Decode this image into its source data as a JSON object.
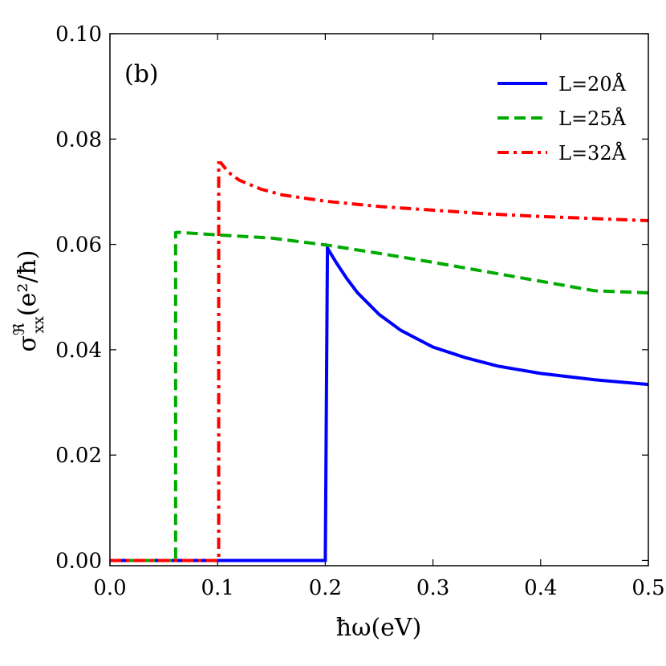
{
  "chart_data": {
    "type": "line",
    "panel_label": "(b)",
    "xlabel": "ħω(eV)",
    "ylabel": "σ",
    "ylabel_sup": "ℜ",
    "ylabel_sub": "xx",
    "ylabel_rest": "(e²/ħ)",
    "xlim": [
      0.0,
      0.5
    ],
    "ylim": [
      -0.001,
      0.1
    ],
    "xticks": [
      0.0,
      0.1,
      0.2,
      0.3,
      0.4,
      0.5
    ],
    "xtick_labels": [
      "0.0",
      "0.1",
      "0.2",
      "0.3",
      "0.4",
      "0.5"
    ],
    "yticks": [
      0.0,
      0.02,
      0.04,
      0.06,
      0.08,
      0.1
    ],
    "ytick_labels": [
      "0.00",
      "0.02",
      "0.04",
      "0.06",
      "0.08",
      "0.10"
    ],
    "legend_position": "top-right",
    "series": [
      {
        "name": "L=20Å",
        "color": "#0000ff",
        "style": "solid",
        "x": [
          0.0,
          0.2,
          0.2,
          0.202,
          0.21,
          0.22,
          0.23,
          0.25,
          0.27,
          0.3,
          0.33,
          0.36,
          0.4,
          0.45,
          0.5
        ],
        "y": [
          0.0,
          0.0,
          0.0,
          0.0593,
          0.0566,
          0.0535,
          0.0508,
          0.0467,
          0.0437,
          0.0405,
          0.0385,
          0.0369,
          0.0355,
          0.0343,
          0.0334
        ]
      },
      {
        "name": "L=25Å",
        "color": "#00aa00",
        "style": "dashed",
        "x": [
          0.0,
          0.061,
          0.061,
          0.063,
          0.1,
          0.15,
          0.2,
          0.25,
          0.3,
          0.35,
          0.4,
          0.45,
          0.5
        ],
        "y": [
          0.0,
          0.0,
          0.0622,
          0.0623,
          0.0618,
          0.0612,
          0.0599,
          0.0583,
          0.0566,
          0.0548,
          0.053,
          0.0512,
          0.0508
        ]
      },
      {
        "name": "L=32Å",
        "color": "#ff0000",
        "style": "dashdot",
        "x": [
          0.0,
          0.101,
          0.101,
          0.103,
          0.11,
          0.12,
          0.14,
          0.16,
          0.2,
          0.25,
          0.3,
          0.35,
          0.4,
          0.45,
          0.5
        ],
        "y": [
          0.0,
          0.0,
          0.0755,
          0.0755,
          0.0737,
          0.0722,
          0.0705,
          0.0694,
          0.0682,
          0.0672,
          0.0665,
          0.0658,
          0.0653,
          0.0649,
          0.0645
        ]
      }
    ]
  }
}
